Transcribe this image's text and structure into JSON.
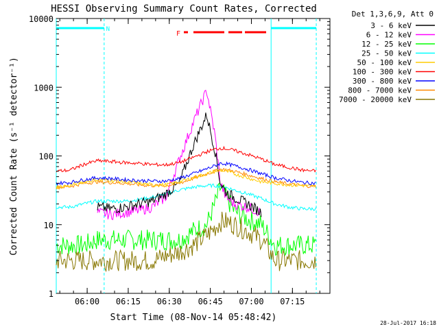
{
  "chart_data": {
    "type": "line",
    "title": "HESSI Observing Summary Count Rates, Corrected",
    "xlabel": "Start Time (08-Nov-14 05:48:42)",
    "ylabel": "Corrected Count Rate (s⁻¹ detector⁻¹)",
    "ylog": true,
    "ylim": [
      1,
      10000
    ],
    "xlim_minutes": [
      0,
      100
    ],
    "x_ticks": [
      "06:00",
      "06:15",
      "06:30",
      "06:45",
      "07:00",
      "07:15"
    ],
    "y_ticks": [
      "1",
      "10",
      "100",
      "1000",
      "10000"
    ],
    "legend_header": "Det 1,3,6,9, Att 0",
    "legend_position": "right",
    "timestamp": "28-Jul-2017 16:18",
    "annotations": {
      "night_marker": "N",
      "flare_marker": "F",
      "eclipse_lines_minutes": [
        0,
        17.5,
        78.5,
        95
      ]
    },
    "x_minutes": [
      0,
      5,
      10,
      15,
      20,
      25,
      30,
      35,
      40,
      45,
      50,
      55,
      58,
      60,
      62,
      65,
      70,
      75,
      80,
      85,
      90,
      95
    ],
    "series": [
      {
        "name": "3 - 6 keV",
        "color": "#000000",
        "values": [
          null,
          null,
          null,
          18,
          17,
          18,
          20,
          22,
          28,
          40,
          140,
          400,
          120,
          40,
          30,
          25,
          20,
          15,
          null,
          null,
          null,
          null
        ]
      },
      {
        "name": "6 - 12 keV",
        "color": "#ff00ff",
        "values": [
          null,
          null,
          null,
          15,
          14,
          15,
          16,
          18,
          25,
          90,
          300,
          900,
          200,
          40,
          25,
          20,
          18,
          15,
          null,
          null,
          null,
          null
        ]
      },
      {
        "name": "12 - 25 keV",
        "color": "#00ff00",
        "values": [
          5,
          5,
          5,
          6,
          6,
          6,
          6,
          6,
          6,
          6,
          8,
          10,
          20,
          35,
          25,
          16,
          12,
          10,
          5,
          5,
          5,
          5
        ]
      },
      {
        "name": "25 - 50 keV",
        "color": "#00ffff",
        "values": [
          18,
          18,
          20,
          22,
          22,
          22,
          23,
          25,
          28,
          32,
          35,
          37,
          37,
          36,
          35,
          32,
          28,
          24,
          20,
          18,
          17,
          17
        ]
      },
      {
        "name": "50 - 100 keV",
        "color": "#ffcc00",
        "values": [
          35,
          37,
          42,
          45,
          44,
          42,
          40,
          38,
          38,
          42,
          48,
          55,
          60,
          62,
          60,
          55,
          48,
          42,
          40,
          38,
          37,
          36
        ]
      },
      {
        "name": "100 - 300 keV",
        "color": "#ff0000",
        "values": [
          60,
          62,
          75,
          85,
          83,
          80,
          78,
          75,
          74,
          80,
          95,
          115,
          125,
          130,
          128,
          120,
          105,
          90,
          75,
          68,
          62,
          60
        ]
      },
      {
        "name": "300 - 800 keV",
        "color": "#0000ff",
        "values": [
          40,
          41,
          45,
          48,
          47,
          45,
          44,
          43,
          43,
          47,
          55,
          65,
          72,
          78,
          77,
          72,
          64,
          55,
          48,
          44,
          41,
          40
        ]
      },
      {
        "name": "800 - 7000 keV",
        "color": "#ff8800",
        "values": [
          35,
          36,
          40,
          42,
          41,
          40,
          38,
          37,
          37,
          40,
          47,
          55,
          60,
          64,
          63,
          60,
          53,
          47,
          42,
          39,
          37,
          36
        ]
      },
      {
        "name": "7000 - 20000 keV",
        "color": "#887700",
        "values": [
          3,
          3,
          3,
          3,
          3,
          3,
          3,
          3,
          3.5,
          4,
          5,
          7,
          9,
          11,
          11,
          10,
          8,
          6,
          3,
          3,
          3,
          3
        ]
      }
    ]
  }
}
